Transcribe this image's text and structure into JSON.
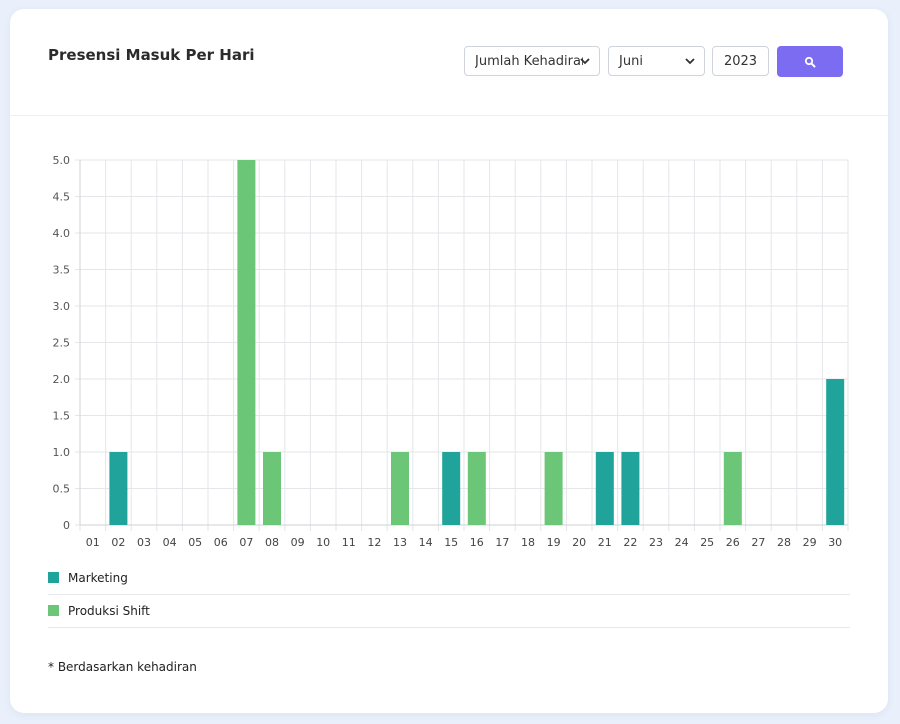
{
  "header": {
    "title": "Presensi Masuk Per Hari",
    "type_select": "Jumlah Kehadiran",
    "month_select": "Juni",
    "year_input": "2023",
    "search_icon": "search-icon"
  },
  "chart_data": {
    "type": "bar",
    "categories": [
      "01",
      "02",
      "03",
      "04",
      "05",
      "06",
      "07",
      "08",
      "09",
      "10",
      "11",
      "12",
      "13",
      "14",
      "15",
      "16",
      "17",
      "18",
      "19",
      "20",
      "21",
      "22",
      "23",
      "24",
      "25",
      "26",
      "27",
      "28",
      "29",
      "30"
    ],
    "series": [
      {
        "name": "Marketing",
        "color": "#1fa39b",
        "values": [
          0,
          1,
          0,
          0,
          0,
          0,
          0,
          0,
          0,
          0,
          0,
          0,
          0,
          0,
          1,
          0,
          0,
          0,
          0,
          0,
          1,
          1,
          0,
          0,
          0,
          0,
          0,
          0,
          0,
          2
        ]
      },
      {
        "name": "Produksi Shift",
        "color": "#6bc677",
        "values": [
          0,
          0,
          0,
          0,
          0,
          0,
          5,
          1,
          0,
          0,
          0,
          0,
          1,
          0,
          0,
          1,
          0,
          0,
          1,
          0,
          0,
          0,
          0,
          0,
          0,
          1,
          0,
          0,
          0,
          0
        ]
      }
    ],
    "ylim": [
      0,
      5
    ],
    "yticks": [
      "0",
      "0.5",
      "1.0",
      "1.5",
      "2.0",
      "2.5",
      "3.0",
      "3.5",
      "4.0",
      "4.5",
      "5.0"
    ],
    "grid": true,
    "legend_position": "bottom-left"
  },
  "footer": {
    "note": "* Berdasarkan kehadiran"
  }
}
